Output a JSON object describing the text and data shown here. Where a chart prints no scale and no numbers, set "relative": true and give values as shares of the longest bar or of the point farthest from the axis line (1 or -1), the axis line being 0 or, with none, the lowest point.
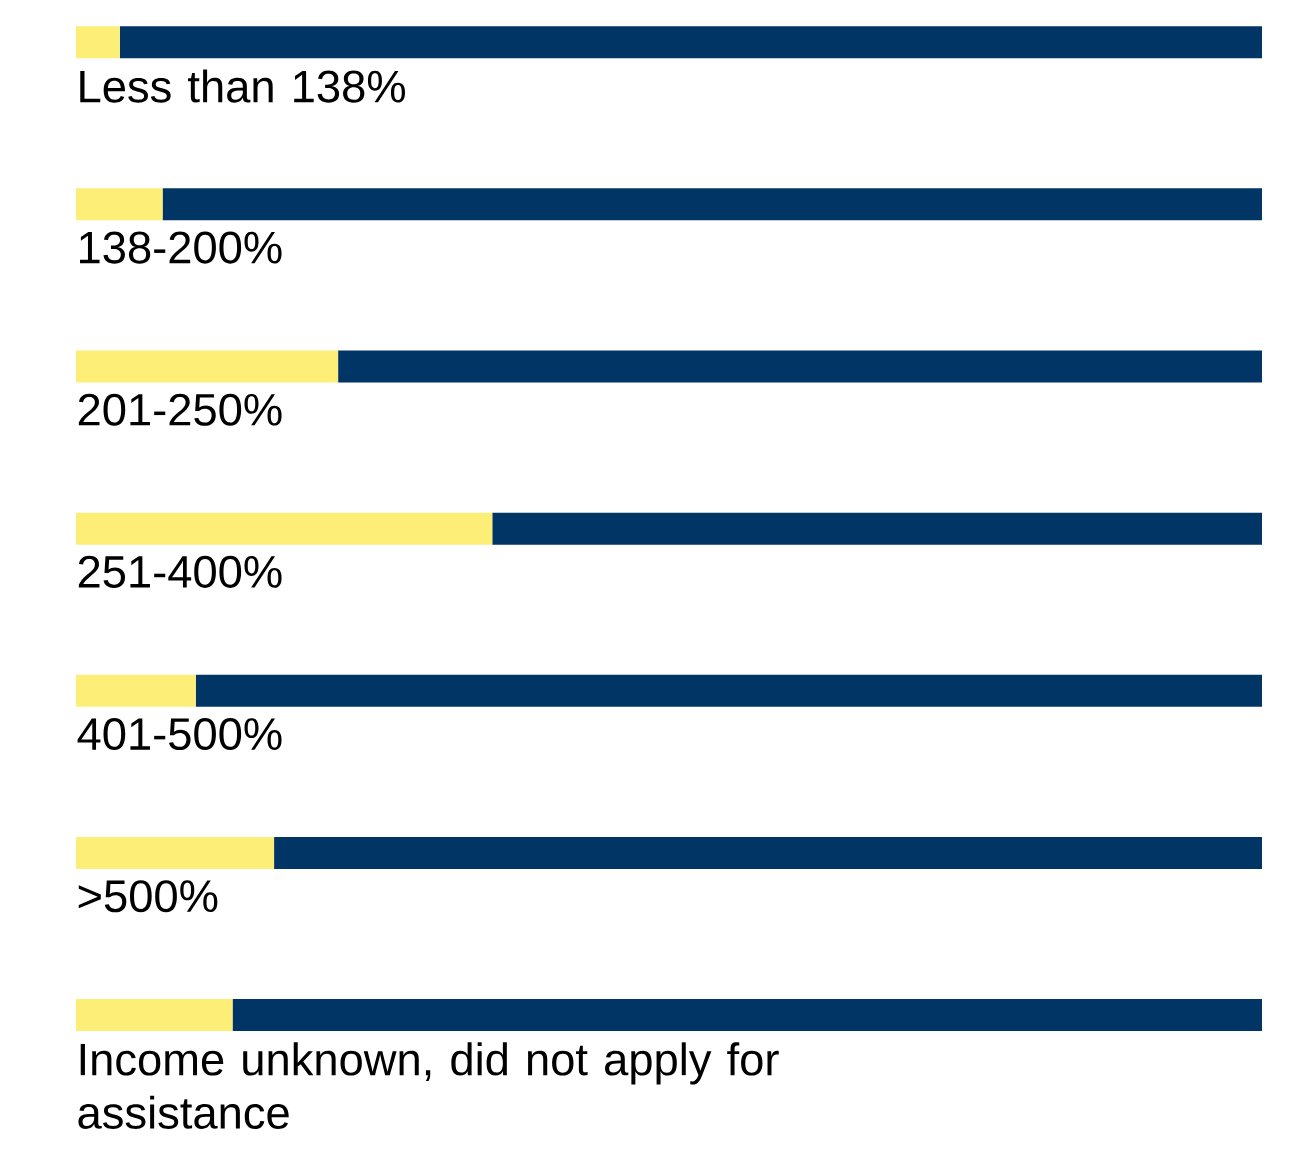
{
  "chart_data": {
    "type": "bar",
    "orientation": "horizontal",
    "stacked": true,
    "relative": true,
    "categories": [
      "Less than 138%",
      "138-200%",
      "201-250%",
      "251-400%",
      "401-500%",
      ">500%",
      "Income unknown, did not apply for assistance"
    ],
    "series": [
      {
        "color": "#fdee78",
        "values": [
          0.037,
          0.073,
          0.221,
          0.351,
          0.101,
          0.167,
          0.132
        ]
      },
      {
        "color": "#003566",
        "values": [
          0.963,
          0.927,
          0.779,
          0.649,
          0.899,
          0.833,
          0.868
        ]
      }
    ]
  }
}
